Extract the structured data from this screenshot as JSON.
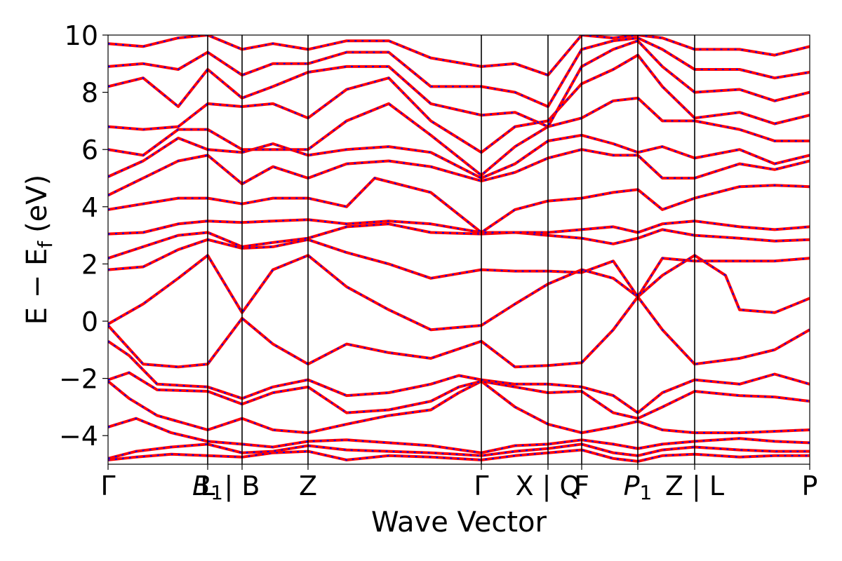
{
  "chart_data": {
    "type": "line",
    "title": "",
    "xlabel": "Wave Vector",
    "ylabel": "E − E",
    "ylabel_sub": "f",
    "ylabel_unit": "(eV)",
    "ylim": [
      -5,
      10
    ],
    "yticks": [
      {
        "value": -4,
        "label": "−4"
      },
      {
        "value": -2,
        "label": "−2"
      },
      {
        "value": 0,
        "label": "0"
      },
      {
        "value": 2,
        "label": "2"
      },
      {
        "value": 4,
        "label": "4"
      },
      {
        "value": 6,
        "label": "6"
      },
      {
        "value": 8,
        "label": "8"
      },
      {
        "value": 10,
        "label": "10"
      }
    ],
    "xlim": [
      0,
      1
    ],
    "grid": false,
    "kpath": [
      {
        "x": 0.0,
        "label": "Γ"
      },
      {
        "x": 0.142,
        "label": "L"
      },
      {
        "x": 0.142,
        "label": "B",
        "sub": "1"
      },
      {
        "x": 0.191,
        "label": "| B"
      },
      {
        "x": 0.285,
        "label": "Z"
      },
      {
        "x": 0.532,
        "label": "Γ"
      },
      {
        "x": 0.627,
        "label": "X | Q"
      },
      {
        "x": 0.675,
        "label": "F"
      },
      {
        "x": 0.755,
        "label": "P",
        "sub": "1"
      },
      {
        "x": 0.836,
        "label": "Z | L"
      },
      {
        "x": 1.0,
        "label": "P"
      }
    ],
    "series_colors": {
      "primary": "#ff0000",
      "overlay": "#0000ff"
    },
    "series": [
      {
        "x": [
          0,
          0.04,
          0.09,
          0.142,
          0.191,
          0.235,
          0.285,
          0.34,
          0.4,
          0.46,
          0.532,
          0.58,
          0.627,
          0.675,
          0.72,
          0.755,
          0.79,
          0.836,
          0.9,
          0.95,
          1.0
        ],
        "values": [
          -4.85,
          -4.75,
          -4.65,
          -4.7,
          -4.75,
          -4.6,
          -4.55,
          -4.85,
          -4.7,
          -4.75,
          -4.85,
          -4.7,
          -4.6,
          -4.5,
          -4.8,
          -4.9,
          -4.7,
          -4.65,
          -4.75,
          -4.7,
          -4.7
        ]
      },
      {
        "x": [
          0,
          0.04,
          0.09,
          0.142,
          0.191,
          0.235,
          0.285,
          0.34,
          0.4,
          0.46,
          0.532,
          0.58,
          0.627,
          0.675,
          0.72,
          0.755,
          0.79,
          0.836,
          0.9,
          0.95,
          1.0
        ],
        "values": [
          -4.8,
          -4.55,
          -4.4,
          -4.3,
          -4.6,
          -4.55,
          -4.35,
          -4.5,
          -4.55,
          -4.6,
          -4.7,
          -4.55,
          -4.45,
          -4.3,
          -4.6,
          -4.7,
          -4.5,
          -4.4,
          -4.5,
          -4.55,
          -4.55
        ]
      },
      {
        "x": [
          0,
          0.04,
          0.09,
          0.142,
          0.191,
          0.235,
          0.285,
          0.34,
          0.4,
          0.46,
          0.532,
          0.58,
          0.627,
          0.675,
          0.72,
          0.755,
          0.79,
          0.836,
          0.9,
          0.95,
          1.0
        ],
        "values": [
          -3.7,
          -3.4,
          -3.9,
          -4.2,
          -4.3,
          -4.4,
          -4.2,
          -4.15,
          -4.25,
          -4.35,
          -4.6,
          -4.35,
          -4.3,
          -4.15,
          -4.3,
          -4.45,
          -4.3,
          -4.2,
          -4.1,
          -4.2,
          -4.25
        ]
      },
      {
        "x": [
          0,
          0.03,
          0.07,
          0.142,
          0.191,
          0.235,
          0.285,
          0.34,
          0.4,
          0.46,
          0.5,
          0.532,
          0.58,
          0.627,
          0.675,
          0.72,
          0.755,
          0.79,
          0.836,
          0.9,
          0.95,
          1.0
        ],
        "values": [
          -2.1,
          -2.7,
          -3.3,
          -3.8,
          -3.4,
          -3.8,
          -3.9,
          -3.6,
          -3.3,
          -3.1,
          -2.5,
          -2.1,
          -3.0,
          -3.6,
          -3.9,
          -3.7,
          -3.5,
          -3.8,
          -3.9,
          -3.9,
          -3.85,
          -3.8
        ]
      },
      {
        "x": [
          0,
          0.03,
          0.07,
          0.142,
          0.191,
          0.235,
          0.285,
          0.34,
          0.4,
          0.46,
          0.5,
          0.532,
          0.58,
          0.627,
          0.675,
          0.72,
          0.755,
          0.79,
          0.836,
          0.9,
          0.95,
          1.0
        ],
        "values": [
          -2.05,
          -1.8,
          -2.4,
          -2.45,
          -2.9,
          -2.5,
          -2.3,
          -3.2,
          -3.1,
          -2.8,
          -2.3,
          -2.1,
          -2.3,
          -2.5,
          -2.45,
          -3.2,
          -3.4,
          -3.0,
          -2.45,
          -2.6,
          -2.65,
          -2.8
        ]
      },
      {
        "x": [
          0,
          0.03,
          0.07,
          0.142,
          0.191,
          0.235,
          0.285,
          0.34,
          0.4,
          0.46,
          0.5,
          0.532,
          0.58,
          0.627,
          0.675,
          0.72,
          0.755,
          0.79,
          0.836,
          0.9,
          0.95,
          1.0
        ],
        "values": [
          -0.7,
          -1.2,
          -2.2,
          -2.3,
          -2.7,
          -2.3,
          -2.05,
          -2.6,
          -2.5,
          -2.2,
          -1.9,
          -2.05,
          -2.2,
          -2.2,
          -2.3,
          -2.6,
          -3.2,
          -2.5,
          -2.05,
          -2.2,
          -1.85,
          -2.2
        ]
      },
      {
        "x": [
          0,
          0.05,
          0.1,
          0.142,
          0.191,
          0.235,
          0.285,
          0.34,
          0.4,
          0.46,
          0.532,
          0.58,
          0.627,
          0.675,
          0.72,
          0.755,
          0.79,
          0.836,
          0.9,
          0.95,
          1.0
        ],
        "values": [
          -0.15,
          -1.5,
          -1.6,
          -1.5,
          0.1,
          -0.8,
          -1.5,
          -0.8,
          -1.1,
          -1.3,
          -0.7,
          -1.6,
          -1.55,
          -1.45,
          -0.3,
          0.85,
          -0.3,
          -1.5,
          -1.3,
          -1.0,
          -0.3
        ]
      },
      {
        "x": [
          0,
          0.05,
          0.1,
          0.142,
          0.191,
          0.235,
          0.285,
          0.34,
          0.4,
          0.46,
          0.532,
          0.58,
          0.627,
          0.675,
          0.72,
          0.755,
          0.79,
          0.836,
          0.88,
          0.9,
          0.95,
          1.0
        ],
        "values": [
          -0.1,
          0.6,
          1.5,
          2.3,
          0.3,
          1.8,
          2.3,
          1.2,
          0.4,
          -0.3,
          -0.15,
          0.6,
          1.3,
          1.8,
          1.5,
          0.85,
          1.6,
          2.3,
          1.6,
          0.4,
          0.3,
          0.8
        ]
      },
      {
        "x": [
          0,
          0.05,
          0.1,
          0.142,
          0.191,
          0.235,
          0.285,
          0.34,
          0.4,
          0.46,
          0.532,
          0.58,
          0.627,
          0.675,
          0.72,
          0.755,
          0.79,
          0.836,
          0.9,
          0.95,
          1.0
        ],
        "values": [
          1.8,
          1.9,
          2.5,
          2.85,
          2.55,
          2.6,
          2.85,
          2.4,
          2.0,
          1.5,
          1.8,
          1.75,
          1.75,
          1.7,
          2.1,
          0.85,
          2.2,
          2.1,
          2.1,
          2.1,
          2.2
        ]
      },
      {
        "x": [
          0,
          0.05,
          0.1,
          0.142,
          0.191,
          0.235,
          0.285,
          0.34,
          0.4,
          0.46,
          0.532,
          0.58,
          0.627,
          0.675,
          0.72,
          0.755,
          0.79,
          0.836,
          0.9,
          0.95,
          1.0
        ],
        "values": [
          2.2,
          2.6,
          3.0,
          3.1,
          2.6,
          2.75,
          2.9,
          3.3,
          3.4,
          3.1,
          3.05,
          3.1,
          3.0,
          2.9,
          2.7,
          2.9,
          3.2,
          3.0,
          2.9,
          2.8,
          2.85
        ]
      },
      {
        "x": [
          0,
          0.05,
          0.1,
          0.142,
          0.191,
          0.235,
          0.285,
          0.34,
          0.4,
          0.46,
          0.532,
          0.58,
          0.627,
          0.675,
          0.72,
          0.755,
          0.79,
          0.836,
          0.9,
          0.95,
          1.0
        ],
        "values": [
          3.05,
          3.1,
          3.4,
          3.5,
          3.45,
          3.5,
          3.55,
          3.4,
          3.5,
          3.4,
          3.1,
          3.1,
          3.1,
          3.2,
          3.3,
          3.1,
          3.4,
          3.5,
          3.3,
          3.2,
          3.3
        ]
      },
      {
        "x": [
          0,
          0.05,
          0.1,
          0.142,
          0.191,
          0.235,
          0.285,
          0.34,
          0.38,
          0.46,
          0.532,
          0.58,
          0.627,
          0.675,
          0.72,
          0.755,
          0.79,
          0.836,
          0.9,
          0.95,
          1.0
        ],
        "values": [
          3.9,
          4.1,
          4.3,
          4.3,
          4.1,
          4.3,
          4.3,
          4.0,
          5.0,
          4.5,
          3.1,
          3.9,
          4.2,
          4.3,
          4.5,
          4.6,
          3.9,
          4.3,
          4.7,
          4.75,
          4.7
        ]
      },
      {
        "x": [
          0,
          0.05,
          0.1,
          0.142,
          0.191,
          0.235,
          0.285,
          0.34,
          0.4,
          0.46,
          0.532,
          0.58,
          0.627,
          0.675,
          0.72,
          0.755,
          0.79,
          0.836,
          0.9,
          0.95,
          1.0
        ],
        "values": [
          4.4,
          5.0,
          5.6,
          5.8,
          4.8,
          5.4,
          5.0,
          5.5,
          5.6,
          5.4,
          4.9,
          5.2,
          5.7,
          6.0,
          5.8,
          5.8,
          5.0,
          5.0,
          5.5,
          5.3,
          5.6
        ]
      },
      {
        "x": [
          0,
          0.05,
          0.1,
          0.142,
          0.191,
          0.235,
          0.285,
          0.34,
          0.4,
          0.46,
          0.532,
          0.58,
          0.627,
          0.675,
          0.72,
          0.755,
          0.79,
          0.836,
          0.9,
          0.95,
          1.0
        ],
        "values": [
          5.05,
          5.6,
          6.4,
          6.0,
          5.9,
          6.2,
          5.8,
          6.0,
          6.1,
          5.9,
          5.0,
          5.5,
          6.3,
          6.5,
          6.2,
          5.9,
          6.1,
          5.7,
          6.0,
          5.5,
          5.8
        ]
      },
      {
        "x": [
          0,
          0.05,
          0.1,
          0.142,
          0.191,
          0.235,
          0.285,
          0.34,
          0.4,
          0.46,
          0.532,
          0.58,
          0.627,
          0.675,
          0.72,
          0.755,
          0.79,
          0.836,
          0.9,
          0.95,
          1.0
        ],
        "values": [
          6.0,
          5.8,
          6.7,
          6.7,
          6.0,
          6.0,
          6.0,
          7.0,
          7.6,
          6.5,
          5.1,
          6.1,
          6.8,
          7.1,
          7.7,
          7.8,
          7.0,
          7.0,
          6.7,
          6.3,
          6.3
        ]
      },
      {
        "x": [
          0,
          0.05,
          0.1,
          0.142,
          0.191,
          0.235,
          0.285,
          0.34,
          0.4,
          0.46,
          0.532,
          0.58,
          0.627,
          0.675,
          0.72,
          0.755,
          0.79,
          0.836,
          0.9,
          0.95,
          1.0
        ],
        "values": [
          6.8,
          6.7,
          6.8,
          7.6,
          7.5,
          7.6,
          7.1,
          8.1,
          8.5,
          7.0,
          5.9,
          6.8,
          7.0,
          8.3,
          8.8,
          9.3,
          8.2,
          7.1,
          7.3,
          6.9,
          7.2
        ]
      },
      {
        "x": [
          0,
          0.05,
          0.1,
          0.142,
          0.191,
          0.235,
          0.285,
          0.34,
          0.4,
          0.46,
          0.532,
          0.58,
          0.627,
          0.675,
          0.72,
          0.755,
          0.79,
          0.836,
          0.9,
          0.95,
          1.0
        ],
        "values": [
          8.2,
          8.5,
          7.5,
          8.8,
          7.8,
          8.2,
          8.7,
          8.9,
          8.9,
          7.6,
          7.2,
          7.3,
          6.8,
          8.9,
          9.5,
          9.8,
          8.9,
          8.0,
          8.1,
          7.7,
          8.0
        ]
      },
      {
        "x": [
          0,
          0.05,
          0.1,
          0.142,
          0.191,
          0.235,
          0.285,
          0.34,
          0.4,
          0.46,
          0.532,
          0.58,
          0.627,
          0.675,
          0.72,
          0.755,
          0.79,
          0.836,
          0.9,
          0.95,
          1.0
        ],
        "values": [
          8.9,
          9.0,
          8.8,
          9.4,
          8.6,
          9.0,
          9.0,
          9.4,
          9.4,
          8.2,
          8.2,
          8.0,
          7.5,
          9.5,
          9.8,
          9.9,
          9.5,
          8.8,
          8.8,
          8.5,
          8.7
        ]
      },
      {
        "x": [
          0,
          0.05,
          0.1,
          0.142,
          0.191,
          0.235,
          0.285,
          0.34,
          0.4,
          0.46,
          0.532,
          0.58,
          0.627,
          0.675,
          0.72,
          0.755,
          0.79,
          0.836,
          0.9,
          0.95,
          1.0
        ],
        "values": [
          9.7,
          9.6,
          9.9,
          10.0,
          9.5,
          9.7,
          9.5,
          9.8,
          9.8,
          9.2,
          8.9,
          9.0,
          8.6,
          10.0,
          9.9,
          10.0,
          9.9,
          9.5,
          9.5,
          9.3,
          9.6
        ]
      }
    ]
  }
}
